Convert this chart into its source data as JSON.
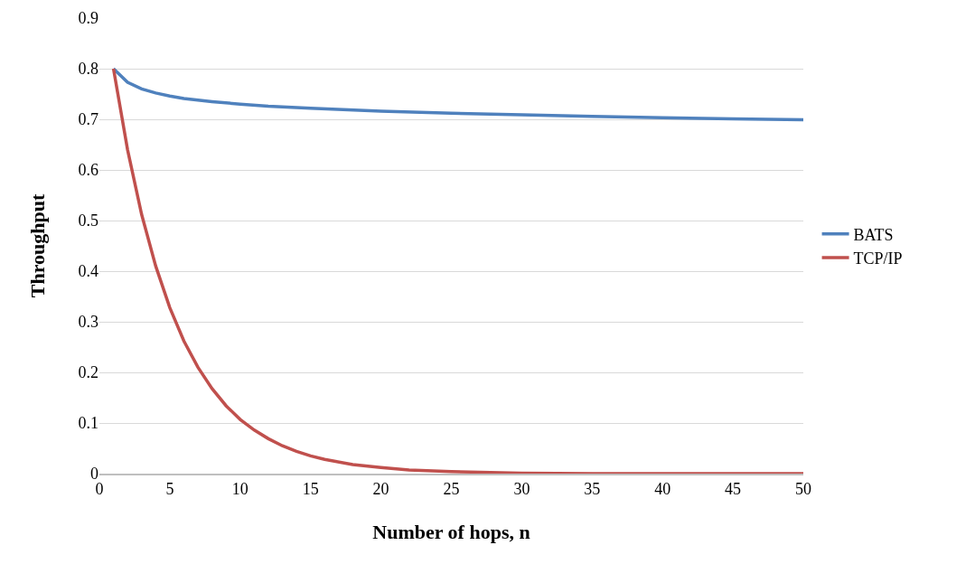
{
  "chart_data": {
    "type": "line",
    "xlabel": "Number of hops, n",
    "ylabel": "Throughput",
    "xlim": [
      0,
      50
    ],
    "xticks": [
      0,
      5,
      10,
      15,
      20,
      25,
      30,
      35,
      40,
      45,
      50
    ],
    "ylim": [
      0,
      0.9
    ],
    "yticks": [
      0,
      0.1,
      0.2,
      0.3,
      0.4,
      0.5,
      0.6,
      0.7,
      0.8,
      0.9
    ],
    "grid": "y",
    "legend": "right",
    "marker": "none",
    "line_style": "solid",
    "series": [
      {
        "name": "BATS",
        "color": "#4f81bd",
        "x": [
          1,
          2,
          3,
          4,
          5,
          6,
          8,
          10,
          12,
          15,
          20,
          25,
          30,
          35,
          40,
          45,
          50
        ],
        "values": [
          0.8,
          0.773,
          0.76,
          0.752,
          0.746,
          0.741,
          0.735,
          0.73,
          0.726,
          0.722,
          0.716,
          0.712,
          0.709,
          0.706,
          0.703,
          0.701,
          0.699
        ]
      },
      {
        "name": "TCP/IP",
        "color": "#c0504d",
        "x": [
          1,
          2,
          3,
          4,
          5,
          6,
          7,
          8,
          9,
          10,
          11,
          12,
          13,
          14,
          15,
          16,
          18,
          20,
          22,
          25,
          30,
          35,
          40,
          50
        ],
        "values": [
          0.8,
          0.64,
          0.512,
          0.41,
          0.328,
          0.262,
          0.21,
          0.168,
          0.134,
          0.107,
          0.086,
          0.069,
          0.055,
          0.044,
          0.035,
          0.028,
          0.018,
          0.012,
          0.007,
          0.004,
          0.001,
          0,
          0,
          0
        ]
      }
    ]
  }
}
